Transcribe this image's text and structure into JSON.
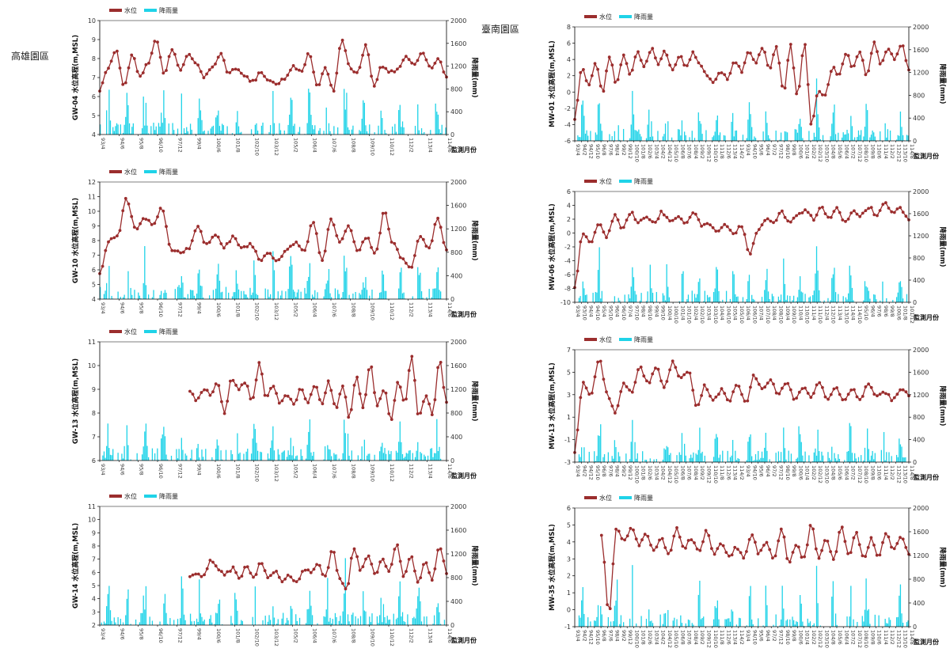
{
  "regions": {
    "left": "高雄園區",
    "right": "臺南園區"
  },
  "legend": {
    "level": "水位",
    "rain": "降雨量"
  },
  "colors": {
    "level": "#9b2d2d",
    "rain": "#1fd3e8",
    "axis": "#000000",
    "tick_text": "#333333"
  },
  "chart_data": [
    {
      "id": "GW-04",
      "type": "line+bar",
      "ylabel": "GW-04 水位高程(m,MSL)",
      "y2label": "降雨量(mm)",
      "xlabel": "監測月份",
      "ylim": [
        4,
        10
      ],
      "yticks": [
        4,
        5,
        6,
        7,
        8,
        9,
        10
      ],
      "y2lim": [
        0,
        2000
      ],
      "y2ticks": [
        0,
        400,
        800,
        1200,
        1600,
        2000
      ],
      "xticks": [
        "93/4",
        "94/6",
        "95/8",
        "96/10",
        "97/12",
        "99/4",
        "100/6",
        "101/8",
        "102/10",
        "103/12",
        "105/2",
        "106/4",
        "107/6",
        "108/8",
        "109/10",
        "110/12",
        "112/2",
        "113/4",
        "114/6"
      ],
      "level_anchors": [
        6.3,
        7.5,
        8.5,
        6.5,
        8.2,
        7,
        7.8,
        9,
        7.2,
        8.5,
        7.3,
        8.3,
        7.8,
        7,
        7.6,
        8.2,
        7.2,
        7.5,
        7,
        6.8,
        7.3,
        6.9,
        6.6,
        7,
        7.6,
        7.3,
        8.3,
        6.5,
        7.5,
        6.2,
        9.1,
        7.5,
        7.2,
        8.8,
        6.5,
        7.6,
        7.3,
        7.4,
        8.2,
        7.6,
        8.4,
        7.5,
        8,
        7.1
      ],
      "rain_peaks": [
        900,
        860,
        1100,
        880,
        900,
        820,
        780,
        800,
        840,
        800,
        860,
        900,
        820,
        1400,
        900,
        880,
        950,
        900,
        830
      ]
    },
    {
      "id": "GW-10",
      "type": "line+bar",
      "ylabel": "GW-10 水位高程(m,MSL)",
      "y2label": "降雨量(mm)",
      "xlabel": "監測月份",
      "ylim": [
        4,
        12
      ],
      "yticks": [
        4,
        5,
        6,
        7,
        8,
        9,
        10,
        11,
        12
      ],
      "y2lim": [
        0,
        2000
      ],
      "y2ticks": [
        0,
        400,
        800,
        1200,
        1600,
        2000
      ],
      "xticks": [
        "93/4",
        "94/6",
        "95/8",
        "96/10",
        "97/12",
        "99/4",
        "100/6",
        "101/8",
        "102/10",
        "103/12",
        "105/2",
        "106/4",
        "107/6",
        "108/8",
        "109/10",
        "110/12",
        "112/2",
        "113/4",
        "114/6"
      ],
      "level_anchors": [
        5.8,
        8,
        8.3,
        10.8,
        8.8,
        9.6,
        9,
        10.2,
        7.4,
        7.2,
        7.5,
        9,
        7.7,
        8.3,
        7.6,
        8.2,
        7.5,
        7.8,
        6.7,
        7.2,
        6.6,
        7.3,
        7.8,
        7.2,
        9.3,
        6.6,
        9.4,
        7.9,
        9.1,
        7.2,
        8.2,
        7,
        10,
        7.8,
        6.8,
        6.2,
        8.3,
        7.4,
        9.5,
        7.3
      ],
      "rain_peaks": [
        880,
        820,
        1100,
        900,
        950,
        830,
        760,
        820,
        800,
        850,
        880,
        900,
        900,
        1600,
        900,
        880,
        920,
        850,
        800
      ]
    },
    {
      "id": "GW-13",
      "type": "line+bar",
      "ylabel": "GW-13 水位高程(m,MSL)",
      "y2label": "降雨量(mm)",
      "xlabel": "監測月份",
      "ylim": [
        6,
        11
      ],
      "yticks": [
        6,
        7,
        8,
        9,
        10,
        11
      ],
      "y2lim": [
        0,
        2000
      ],
      "y2ticks": [
        0,
        400,
        800,
        1200,
        1600,
        2000
      ],
      "xticks": [
        "93/4",
        "94/6",
        "95/8",
        "96/10",
        "97/12",
        "99/4",
        "100/6",
        "101/8",
        "102/10",
        "103/12",
        "105/2",
        "106/4",
        "107/6",
        "108/8",
        "109/10",
        "110/12",
        "112/2",
        "113/4",
        "114/6"
      ],
      "level_start": 0.26,
      "level_anchors": [
        8.9,
        8.5,
        9,
        8.8,
        9.3,
        8,
        9.5,
        9,
        9.3,
        8.5,
        10.1,
        8.6,
        9.2,
        8.4,
        8.8,
        8.3,
        9,
        8.5,
        9.2,
        8.4,
        9.3,
        8.2,
        9.2,
        7.8,
        9.6,
        8.2,
        10.1,
        8.3,
        9,
        7.7,
        9.3,
        8.5,
        10.4,
        7.8,
        8.8,
        7.9,
        10.2,
        8.5
      ],
      "rain_peaks": [
        820,
        880,
        830,
        1100,
        900,
        880,
        830,
        820,
        850,
        820,
        860,
        900,
        880,
        1550,
        900,
        880,
        1000,
        820,
        800
      ]
    },
    {
      "id": "GW-14",
      "type": "line+bar",
      "ylabel": "GW-14 水位高程(m,MSL)",
      "y2label": "降雨量(mm)",
      "xlabel": "監測月份",
      "ylim": [
        2,
        11
      ],
      "yticks": [
        2,
        3,
        4,
        5,
        6,
        7,
        8,
        9,
        10,
        11
      ],
      "y2lim": [
        0,
        2000
      ],
      "y2ticks": [
        0,
        400,
        800,
        1200,
        1600,
        2000
      ],
      "xticks": [
        "93/4",
        "94/6",
        "95/8",
        "96/10",
        "97/12",
        "99/4",
        "100/6",
        "101/8",
        "102/10",
        "103/12",
        "105/2",
        "106/4",
        "107/6",
        "108/8",
        "109/10",
        "110/12",
        "112/2",
        "113/4",
        "114/6"
      ],
      "level_start": 0.26,
      "level_anchors": [
        5.8,
        6,
        5.7,
        7,
        6.2,
        5.9,
        6.3,
        5.6,
        6.5,
        5.5,
        6.8,
        5.6,
        6.1,
        5.4,
        5.8,
        5.2,
        6.3,
        6,
        6.6,
        5.6,
        7.8,
        5.4,
        4.7,
        7.9,
        6.2,
        7.3,
        5.8,
        7,
        6.1,
        8.3,
        5.6,
        7.2,
        5.2,
        6.8,
        5.5,
        8.1,
        6
      ],
      "rain_peaks": [
        780,
        1000,
        820,
        1100,
        1000,
        800,
        800,
        800,
        760,
        780,
        820,
        850,
        900,
        1400,
        850,
        850,
        1000,
        820,
        780
      ]
    },
    {
      "id": "MW-01",
      "type": "line+bar",
      "ylabel": "MW-01 水位高程(m,MSL)",
      "y2label": "降雨量(mm)",
      "xlabel": "監測月份",
      "ylim": [
        -6,
        8
      ],
      "yticks": [
        -6,
        -4,
        -2,
        0,
        2,
        4,
        6,
        8
      ],
      "y2lim": [
        0,
        2000
      ],
      "y2ticks": [
        0,
        400,
        800,
        1200,
        1600,
        2000
      ],
      "xticks": [
        "93/4",
        "94/2",
        "94/12",
        "95/10",
        "96/8",
        "97/6",
        "98/4",
        "99/2",
        "99/12",
        "100/10",
        "101/8",
        "102/6",
        "103/4",
        "104/2",
        "104/12",
        "105/10",
        "106/8",
        "107/6",
        "108/4",
        "109/2",
        "109/12",
        "110/10",
        "111/8",
        "112/6",
        "113/4",
        "114/2",
        "93/4",
        "94/10",
        "95/6",
        "96/4",
        "97/2",
        "97/12",
        "98/10",
        "99/8",
        "100/6",
        "101/4",
        "102/2",
        "102/12",
        "103/10",
        "104/8",
        "105/6",
        "106/4",
        "107/2",
        "107/12",
        "108/10",
        "109/8",
        "110/6",
        "111/4",
        "112/2",
        "112/12",
        "113/10",
        "114/8"
      ],
      "level_anchors": [
        -3.5,
        3,
        1,
        3.5,
        0,
        4.5,
        1,
        4.7,
        2,
        5.2,
        3,
        5.3,
        3.5,
        5,
        2.5,
        4.5,
        3,
        4.8,
        3.5,
        2.2,
        1.2,
        2.5,
        1.5,
        3.8,
        2.5,
        5,
        3.5,
        5.5,
        3,
        5.5,
        0,
        5.8,
        -0.5,
        6,
        -4,
        0,
        -0.5,
        3,
        2,
        4.8,
        3,
        5,
        2,
        6,
        3.5,
        5.2,
        4,
        6,
        2.5
      ],
      "rain_peaks": [
        900,
        1300,
        1000,
        1100,
        900,
        820,
        850,
        760,
        850,
        800,
        880,
        830,
        860,
        900,
        1500,
        880,
        900,
        920,
        850,
        800
      ]
    },
    {
      "id": "MW-06",
      "type": "line+bar",
      "ylabel": "MW-06 水位高程(m,MSL)",
      "y2label": "降雨量(mm)",
      "xlabel": "監測月份",
      "ylim": [
        -10,
        6
      ],
      "yticks": [
        -10,
        -8,
        -6,
        -4,
        -2,
        0,
        2,
        4,
        6
      ],
      "y2lim": [
        0,
        2000
      ],
      "y2ticks": [
        0,
        400,
        800,
        1200,
        1600,
        2000
      ],
      "xticks": [
        "93/4",
        "93/10",
        "94/4",
        "94/10",
        "95/4",
        "95/10",
        "96/4",
        "96/10",
        "97/4",
        "97/10",
        "98/4",
        "98/10",
        "99/4",
        "99/10",
        "100/4",
        "100/10",
        "101/4",
        "101/10",
        "102/4",
        "102/10",
        "103/4",
        "103/10",
        "104/4",
        "104/10",
        "105/4",
        "105/10",
        "106/4",
        "106/10",
        "107/4",
        "107/10",
        "108/4",
        "108/10",
        "109/4",
        "109/10",
        "110/4",
        "110/10",
        "111/4",
        "111/10",
        "112/4",
        "112/10",
        "113/4",
        "113/10",
        "114/4",
        "114/10",
        "95/10",
        "96/4",
        "97/6",
        "98/6",
        "99/8",
        "100/6",
        "101/8",
        "101/12"
      ],
      "level_anchors": [
        -8,
        0,
        -1.5,
        1.5,
        -0.5,
        2.5,
        0.5,
        3,
        1.5,
        2.5,
        1.5,
        3,
        1.5,
        2.5,
        1.5,
        3,
        1,
        1.2,
        0.3,
        1.2,
        0,
        1,
        -3,
        0.5,
        2,
        1.5,
        3,
        1.5,
        2.5,
        3.5,
        2,
        3.8,
        2,
        3.5,
        1.5,
        3.2,
        2.5,
        3.8,
        2.5,
        4.2,
        3,
        3.5,
        2
      ],
      "rain_peaks": [
        900,
        1150,
        950,
        1000,
        920,
        850,
        850,
        800,
        860,
        800,
        880,
        850,
        880,
        900,
        1200,
        880,
        900,
        960,
        900,
        850
      ]
    },
    {
      "id": "MW-13",
      "type": "line+bar",
      "ylabel": "MW-13 水位高程(m,MSL)",
      "y2label": "降雨量(mm)",
      "xlabel": "監測月份",
      "ylim": [
        -3,
        7
      ],
      "yticks": [
        -3,
        -1,
        1,
        3,
        5,
        7
      ],
      "y2lim": [
        0,
        2000
      ],
      "y2ticks": [
        0,
        400,
        800,
        1200,
        1600,
        2000
      ],
      "xticks": [
        "93/4",
        "94/2",
        "94/12",
        "95/10",
        "96/8",
        "97/6",
        "98/4",
        "99/2",
        "99/12",
        "100/10",
        "101/8",
        "102/6",
        "103/4",
        "104/2",
        "104/12",
        "105/10",
        "106/8",
        "107/6",
        "108/4",
        "109/2",
        "109/12",
        "110/10",
        "111/8",
        "112/6",
        "113/4",
        "114/2",
        "93/4",
        "94/10",
        "95/6",
        "96/4",
        "97/2",
        "97/12",
        "98/10",
        "99/8",
        "100/6",
        "101/4",
        "102/2",
        "102/12",
        "103/10",
        "104/8",
        "105/6",
        "106/4",
        "107/2",
        "107/12",
        "108/10",
        "109/8",
        "110/6",
        "111/4",
        "112/2",
        "112/12",
        "113/10",
        "114/8"
      ],
      "level_anchors": [
        -2,
        4,
        3,
        6.2,
        3,
        1.5,
        4,
        3.3,
        5.5,
        4,
        5.5,
        3.5,
        6,
        4.5,
        5,
        2,
        3.8,
        2.5,
        3.4,
        2.5,
        4,
        2.2,
        4.7,
        3.5,
        4.2,
        3,
        4.2,
        2.5,
        3.6,
        2.8,
        4,
        2.7,
        3.6,
        2.6,
        3.5,
        2.5,
        4,
        3,
        3.3,
        2.5,
        3.5,
        3
      ],
      "rain_peaks": [
        900,
        1000,
        950,
        1100,
        900,
        850,
        850,
        820,
        820,
        880,
        830,
        840,
        860,
        880,
        1200,
        880,
        900,
        900,
        850,
        820
      ]
    },
    {
      "id": "MW-35",
      "type": "line+bar",
      "ylabel": "MW-35 水位高程(m,MSL)",
      "y2label": "降雨量(mm)",
      "xlabel": "監測月份",
      "ylim": [
        -1,
        6
      ],
      "yticks": [
        -1,
        0,
        1,
        2,
        3,
        4,
        5,
        6
      ],
      "y2lim": [
        0,
        2000
      ],
      "y2ticks": [
        0,
        400,
        800,
        1200,
        1600,
        2000
      ],
      "xticks": [
        "93/4",
        "94/2",
        "94/12",
        "95/10",
        "96/8",
        "97/6",
        "98/4",
        "99/2",
        "99/12",
        "100/10",
        "101/8",
        "102/6",
        "103/4",
        "104/2",
        "104/12",
        "105/10",
        "106/8",
        "107/6",
        "108/4",
        "109/2",
        "109/12",
        "110/10",
        "111/8",
        "112/6",
        "113/4",
        "114/2",
        "93/4",
        "94/10",
        "95/6",
        "96/4",
        "97/2",
        "97/12",
        "98/10",
        "99/8",
        "100/6",
        "101/4",
        "102/2",
        "102/12",
        "103/10",
        "104/8",
        "105/6",
        "106/4",
        "107/2",
        "107/12",
        "108/10",
        "109/8",
        "110/6",
        "111/4",
        "112/2",
        "112/12",
        "113/10",
        "114/8"
      ],
      "level_start": 0.08,
      "level_anchors": [
        4.3,
        -0.3,
        4.8,
        4,
        4.8,
        3.8,
        4.5,
        3.5,
        4.2,
        3.3,
        4.8,
        3.6,
        4.2,
        3.4,
        4.6,
        3.3,
        4,
        3.1,
        3.7,
        3,
        4.5,
        3.3,
        3.9,
        3,
        4.8,
        2.8,
        3.8,
        3,
        5,
        3,
        4.2,
        3,
        5,
        3.2,
        4.5,
        3,
        4.2,
        3.1,
        4.6,
        3.5,
        4.4,
        3.2
      ],
      "rain_peaks": [
        900,
        1600,
        1100,
        1300,
        900,
        850,
        800,
        800,
        900,
        850,
        850,
        860,
        900,
        880,
        1250,
        880,
        900,
        950,
        850,
        800
      ]
    }
  ]
}
